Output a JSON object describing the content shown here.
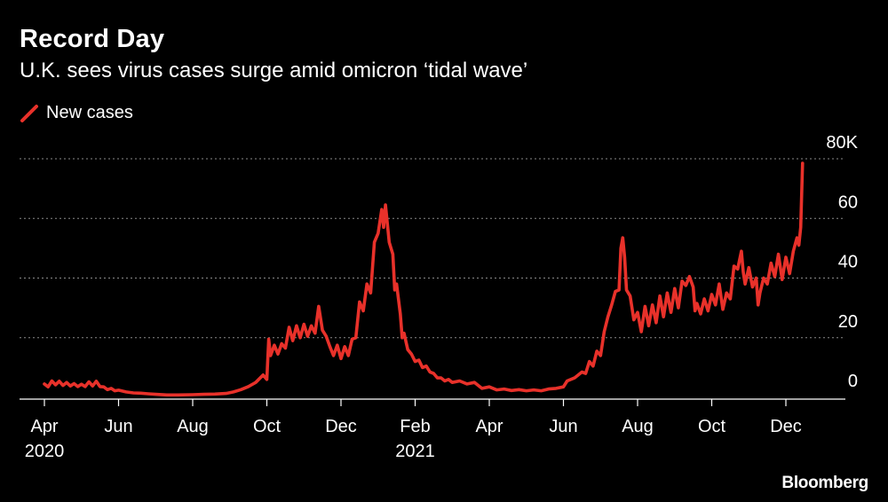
{
  "chart_data": {
    "type": "line",
    "title": "Record Day",
    "subtitle": "U.K. sees virus cases surge amid omicron ‘tidal wave’",
    "series": [
      {
        "name": "New cases",
        "color": "#e8312a"
      }
    ],
    "ylim": [
      0,
      80
    ],
    "yticks": [
      "0",
      "20",
      "40",
      "60",
      "80K"
    ],
    "ytick_values": [
      0,
      20,
      40,
      60,
      80
    ],
    "x_ticks": [
      {
        "label": "Apr",
        "sub": "2020",
        "month_index": 0
      },
      {
        "label": "Jun",
        "sub": "",
        "month_index": 2
      },
      {
        "label": "Aug",
        "sub": "",
        "month_index": 4
      },
      {
        "label": "Oct",
        "sub": "",
        "month_index": 6
      },
      {
        "label": "Dec",
        "sub": "",
        "month_index": 8
      },
      {
        "label": "Feb",
        "sub": "2021",
        "month_index": 10
      },
      {
        "label": "Apr",
        "sub": "",
        "month_index": 12
      },
      {
        "label": "Jun",
        "sub": "",
        "month_index": 14
      },
      {
        "label": "Aug",
        "sub": "",
        "month_index": 16
      },
      {
        "label": "Oct",
        "sub": "",
        "month_index": 18
      },
      {
        "label": "Dec",
        "sub": "",
        "month_index": 20
      }
    ],
    "x_range_months": [
      -0.15,
      21.6
    ],
    "points": [
      [
        0.0,
        4.5
      ],
      [
        0.1,
        3.5
      ],
      [
        0.2,
        5.5
      ],
      [
        0.3,
        4.2
      ],
      [
        0.4,
        5.4
      ],
      [
        0.5,
        4.0
      ],
      [
        0.6,
        5.0
      ],
      [
        0.7,
        3.8
      ],
      [
        0.8,
        4.6
      ],
      [
        0.9,
        3.6
      ],
      [
        1.0,
        4.4
      ],
      [
        1.1,
        3.6
      ],
      [
        1.2,
        5.2
      ],
      [
        1.3,
        3.8
      ],
      [
        1.4,
        5.4
      ],
      [
        1.5,
        3.6
      ],
      [
        1.6,
        3.5
      ],
      [
        1.7,
        2.6
      ],
      [
        1.8,
        3.0
      ],
      [
        1.9,
        2.2
      ],
      [
        2.0,
        2.4
      ],
      [
        2.2,
        1.8
      ],
      [
        2.4,
        1.5
      ],
      [
        2.6,
        1.4
      ],
      [
        2.8,
        1.2
      ],
      [
        3.0,
        1.0
      ],
      [
        3.3,
        0.8
      ],
      [
        3.6,
        0.8
      ],
      [
        4.0,
        0.9
      ],
      [
        4.3,
        1.0
      ],
      [
        4.6,
        1.1
      ],
      [
        4.9,
        1.3
      ],
      [
        5.1,
        1.8
      ],
      [
        5.3,
        2.6
      ],
      [
        5.5,
        3.6
      ],
      [
        5.7,
        5.0
      ],
      [
        5.9,
        7.5
      ],
      [
        6.0,
        6.0
      ],
      [
        6.05,
        19.5
      ],
      [
        6.1,
        14.0
      ],
      [
        6.2,
        17.5
      ],
      [
        6.3,
        14.5
      ],
      [
        6.4,
        18.0
      ],
      [
        6.5,
        16.5
      ],
      [
        6.6,
        23.5
      ],
      [
        6.7,
        19.0
      ],
      [
        6.8,
        24.0
      ],
      [
        6.9,
        20.0
      ],
      [
        7.0,
        24.5
      ],
      [
        7.1,
        20.5
      ],
      [
        7.2,
        24.0
      ],
      [
        7.3,
        21.5
      ],
      [
        7.4,
        30.5
      ],
      [
        7.5,
        22.5
      ],
      [
        7.6,
        20.5
      ],
      [
        7.7,
        17.0
      ],
      [
        7.8,
        14.0
      ],
      [
        7.9,
        17.5
      ],
      [
        8.0,
        13.0
      ],
      [
        8.1,
        17.0
      ],
      [
        8.2,
        14.0
      ],
      [
        8.3,
        19.5
      ],
      [
        8.4,
        20.0
      ],
      [
        8.5,
        32.0
      ],
      [
        8.6,
        29.0
      ],
      [
        8.7,
        38.0
      ],
      [
        8.8,
        35.0
      ],
      [
        8.9,
        52.0
      ],
      [
        9.0,
        55.0
      ],
      [
        9.1,
        63.0
      ],
      [
        9.15,
        57.0
      ],
      [
        9.2,
        64.5
      ],
      [
        9.3,
        52.0
      ],
      [
        9.4,
        48.0
      ],
      [
        9.45,
        36.0
      ],
      [
        9.5,
        38.0
      ],
      [
        9.6,
        28.0
      ],
      [
        9.65,
        20.0
      ],
      [
        9.7,
        21.5
      ],
      [
        9.8,
        16.0
      ],
      [
        9.9,
        14.5
      ],
      [
        10.0,
        12.0
      ],
      [
        10.1,
        12.5
      ],
      [
        10.2,
        10.0
      ],
      [
        10.3,
        10.5
      ],
      [
        10.4,
        8.5
      ],
      [
        10.5,
        8.0
      ],
      [
        10.6,
        6.5
      ],
      [
        10.7,
        6.5
      ],
      [
        10.8,
        5.5
      ],
      [
        10.9,
        6.0
      ],
      [
        11.0,
        5.0
      ],
      [
        11.2,
        5.5
      ],
      [
        11.4,
        4.5
      ],
      [
        11.6,
        5.0
      ],
      [
        11.8,
        3.0
      ],
      [
        12.0,
        3.5
      ],
      [
        12.2,
        2.5
      ],
      [
        12.4,
        2.8
      ],
      [
        12.6,
        2.3
      ],
      [
        12.8,
        2.6
      ],
      [
        13.0,
        2.2
      ],
      [
        13.2,
        2.5
      ],
      [
        13.4,
        2.2
      ],
      [
        13.6,
        2.8
      ],
      [
        13.8,
        3.0
      ],
      [
        14.0,
        3.5
      ],
      [
        14.1,
        5.5
      ],
      [
        14.3,
        6.5
      ],
      [
        14.5,
        8.5
      ],
      [
        14.6,
        8.0
      ],
      [
        14.7,
        12.0
      ],
      [
        14.8,
        10.5
      ],
      [
        14.9,
        15.5
      ],
      [
        15.0,
        14.0
      ],
      [
        15.1,
        22.0
      ],
      [
        15.2,
        27.0
      ],
      [
        15.3,
        31.0
      ],
      [
        15.4,
        35.5
      ],
      [
        15.5,
        36.0
      ],
      [
        15.55,
        50.0
      ],
      [
        15.6,
        53.5
      ],
      [
        15.65,
        47.0
      ],
      [
        15.7,
        36.0
      ],
      [
        15.8,
        34.0
      ],
      [
        15.9,
        26.0
      ],
      [
        16.0,
        28.5
      ],
      [
        16.1,
        22.0
      ],
      [
        16.2,
        30.5
      ],
      [
        16.3,
        24.0
      ],
      [
        16.4,
        31.0
      ],
      [
        16.5,
        25.0
      ],
      [
        16.6,
        34.0
      ],
      [
        16.7,
        27.0
      ],
      [
        16.8,
        35.0
      ],
      [
        16.9,
        28.5
      ],
      [
        17.0,
        36.5
      ],
      [
        17.1,
        30.0
      ],
      [
        17.2,
        39.0
      ],
      [
        17.3,
        37.5
      ],
      [
        17.4,
        40.5
      ],
      [
        17.5,
        37.0
      ],
      [
        17.55,
        29.0
      ],
      [
        17.6,
        31.5
      ],
      [
        17.7,
        28.0
      ],
      [
        17.8,
        33.0
      ],
      [
        17.9,
        29.0
      ],
      [
        18.0,
        34.5
      ],
      [
        18.1,
        31.0
      ],
      [
        18.2,
        38.0
      ],
      [
        18.3,
        29.5
      ],
      [
        18.4,
        35.0
      ],
      [
        18.5,
        33.0
      ],
      [
        18.6,
        44.0
      ],
      [
        18.7,
        43.0
      ],
      [
        18.8,
        49.0
      ],
      [
        18.85,
        42.0
      ],
      [
        18.9,
        38.0
      ],
      [
        19.0,
        43.5
      ],
      [
        19.1,
        37.0
      ],
      [
        19.2,
        40.0
      ],
      [
        19.25,
        31.0
      ],
      [
        19.3,
        35.0
      ],
      [
        19.4,
        40.0
      ],
      [
        19.5,
        38.0
      ],
      [
        19.6,
        45.0
      ],
      [
        19.7,
        40.5
      ],
      [
        19.8,
        48.0
      ],
      [
        19.9,
        39.5
      ],
      [
        20.0,
        47.0
      ],
      [
        20.1,
        41.5
      ],
      [
        20.2,
        49.0
      ],
      [
        20.3,
        53.5
      ],
      [
        20.35,
        51.0
      ],
      [
        20.4,
        57.0
      ],
      [
        20.45,
        78.5
      ]
    ]
  },
  "legend": {
    "label": "New cases"
  },
  "brand": {
    "name": "Bloomberg"
  }
}
